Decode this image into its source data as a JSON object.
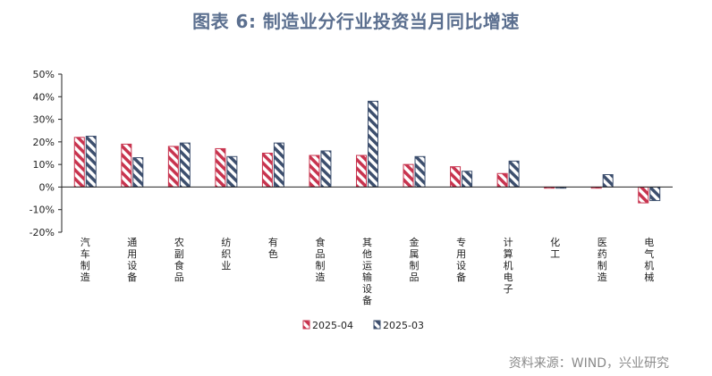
{
  "title": "图表 6:  制造业分行业投资当月同比增速",
  "source": "资料来源：WIND，兴业研究",
  "colors": {
    "series_a": "#c8344f",
    "series_b": "#3d4f6e",
    "title": "#5b6f8f"
  },
  "chart_data": {
    "type": "bar",
    "categories": [
      "汽车制造",
      "通用设备",
      "农副食品",
      "纺织业",
      "有色",
      "食品制造",
      "其他运输设备",
      "金属制品",
      "专用设备",
      "计算机电子",
      "化工",
      "医药制造",
      "电气机械"
    ],
    "series": [
      {
        "name": "2025-04",
        "values": [
          22,
          19,
          18,
          17,
          15,
          14,
          14,
          10,
          9,
          6,
          -0.5,
          -0.5,
          -7
        ],
        "pattern": "diagonal-hatch",
        "color": "#c8344f"
      },
      {
        "name": "2025-03",
        "values": [
          22.5,
          13,
          19.5,
          13.5,
          19.5,
          16,
          38,
          13.5,
          7,
          11.5,
          -0.5,
          5.5,
          -6
        ],
        "pattern": "diagonal-hatch",
        "color": "#3d4f6e"
      }
    ],
    "yticks": [
      "50%",
      "40%",
      "30%",
      "20%",
      "10%",
      "0%",
      "-10%",
      "-20%"
    ],
    "ylim": [
      -20,
      50
    ],
    "legend_position": "bottom-center",
    "grid": false
  }
}
